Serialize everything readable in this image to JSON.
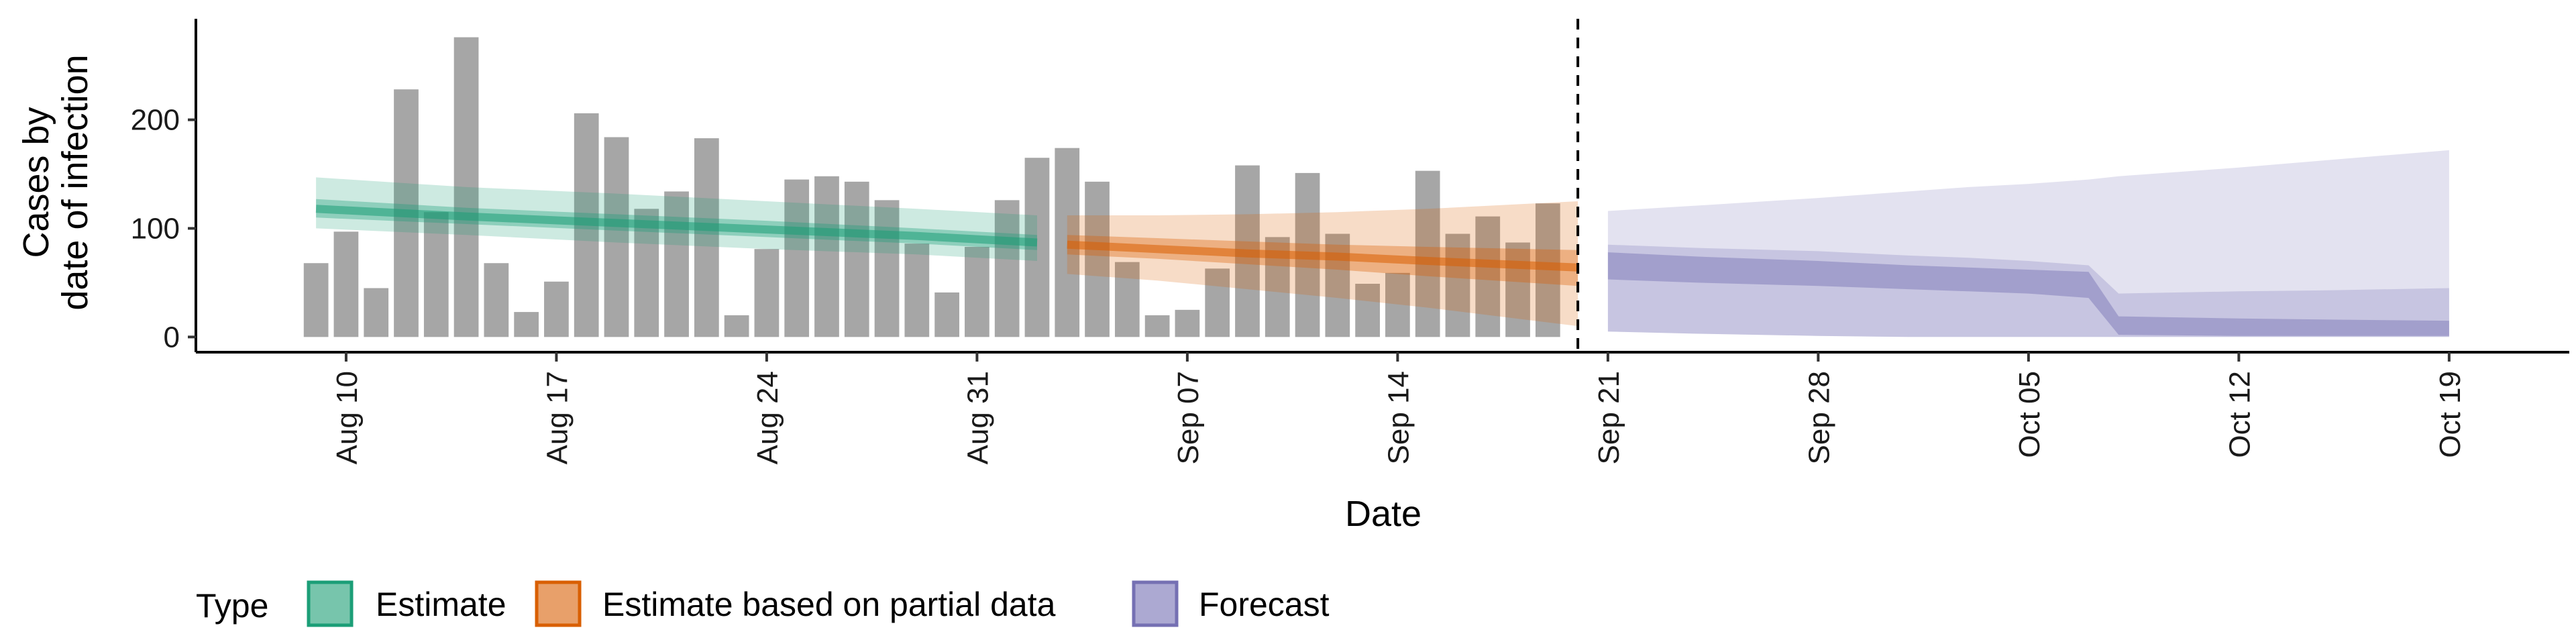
{
  "chart_data": {
    "type": "bar",
    "xlabel": "Date",
    "ylabel_lines": [
      "Cases by",
      "date of infection"
    ],
    "y_ticks": [
      0,
      100,
      200
    ],
    "ylim": [
      -14,
      293
    ],
    "x_ticks": [
      {
        "date": "2020-08-10",
        "label": "Aug 10"
      },
      {
        "date": "2020-08-17",
        "label": "Aug 17"
      },
      {
        "date": "2020-08-24",
        "label": "Aug 24"
      },
      {
        "date": "2020-08-31",
        "label": "Aug 31"
      },
      {
        "date": "2020-09-07",
        "label": "Sep 07"
      },
      {
        "date": "2020-09-14",
        "label": "Sep 14"
      },
      {
        "date": "2020-09-21",
        "label": "Sep 21"
      },
      {
        "date": "2020-09-28",
        "label": "Sep 28"
      },
      {
        "date": "2020-10-05",
        "label": "Oct 05"
      },
      {
        "date": "2020-10-12",
        "label": "Oct 12"
      },
      {
        "date": "2020-10-19",
        "label": "Oct 19"
      }
    ],
    "xlim": [
      "2020-08-05",
      "2020-10-23"
    ],
    "vline_date": "2020-09-20",
    "bars": {
      "start_date": "2020-08-09",
      "values": [
        68,
        97,
        45,
        228,
        115,
        276,
        68,
        23,
        51,
        206,
        184,
        118,
        134,
        183,
        20,
        81,
        145,
        148,
        143,
        126,
        86,
        41,
        83,
        126,
        165,
        174,
        143,
        69,
        20,
        25,
        63,
        158,
        92,
        151,
        95,
        49,
        59,
        153,
        95,
        111,
        87,
        123
      ],
      "color": "#a6a6a6"
    },
    "series": [
      {
        "name": "Estimate",
        "color": "#1b9e77",
        "dates": [
          "2020-08-09",
          "2020-08-14",
          "2020-08-19",
          "2020-08-24",
          "2020-08-29",
          "2020-09-02"
        ],
        "median": [
          118,
          111,
          105,
          99,
          93,
          87
        ],
        "lower50": [
          110,
          104,
          98,
          92,
          86,
          80
        ],
        "upper50": [
          127,
          119,
          113,
          107,
          100,
          94
        ],
        "lower90": [
          100,
          94,
          87,
          81,
          76,
          70
        ],
        "upper90": [
          147,
          138,
          132,
          125,
          118,
          112
        ]
      },
      {
        "name": "Estimate based on partial data",
        "color": "#d95f02",
        "dates": [
          "2020-09-03",
          "2020-09-06",
          "2020-09-09",
          "2020-09-12",
          "2020-09-15",
          "2020-09-20"
        ],
        "median": [
          85,
          81,
          77,
          74,
          70,
          64
        ],
        "lower50": [
          76,
          72,
          67,
          62,
          56,
          47
        ],
        "upper50": [
          94,
          91,
          88,
          85,
          83,
          80
        ],
        "lower90": [
          58,
          52,
          44,
          36,
          27,
          10
        ],
        "upper90": [
          112,
          112,
          113,
          115,
          118,
          125
        ]
      },
      {
        "name": "Forecast",
        "color": "#7570b3",
        "dates": [
          "2020-09-21",
          "2020-09-24",
          "2020-09-28",
          "2020-10-01",
          "2020-10-03",
          "2020-10-05",
          "2020-10-07",
          "2020-10-08",
          "2020-10-12",
          "2020-10-15",
          "2020-10-19"
        ],
        "median": [
          62,
          59,
          56,
          52,
          50,
          48,
          45,
          10,
          9,
          8,
          7
        ],
        "lower50": [
          53,
          50,
          47,
          44,
          42,
          40,
          36,
          2,
          1,
          1,
          1
        ],
        "upper50": [
          78,
          74,
          70,
          66,
          64,
          62,
          60,
          19,
          17,
          16,
          15
        ],
        "lower90": [
          5,
          3,
          1,
          0,
          0,
          0,
          0,
          0,
          0,
          0,
          0
        ],
        "upper90": [
          116,
          121,
          128,
          134,
          138,
          141,
          145,
          148,
          156,
          163,
          172
        ],
        "upper75": [
          85,
          82,
          79,
          75,
          73,
          70,
          66,
          40,
          42,
          43,
          45
        ]
      }
    ],
    "legend": {
      "title": "Type",
      "position": "bottom",
      "items": [
        "Estimate",
        "Estimate based on partial data",
        "Forecast"
      ]
    }
  }
}
